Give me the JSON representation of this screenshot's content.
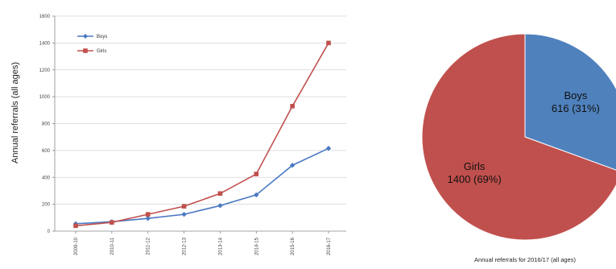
{
  "chart_data": [
    {
      "type": "line",
      "ylabel": "Annual referrals (all ages)",
      "xlabel": "",
      "ylim": [
        0,
        1600
      ],
      "yticks": [
        0,
        200,
        400,
        600,
        800,
        1000,
        1200,
        1400,
        1600
      ],
      "grid": true,
      "legend_position": "top-left",
      "categories": [
        "2009-10",
        "2010-11",
        "2011-12",
        "2012-13",
        "2013-14",
        "2014-15",
        "2015-16",
        "2016-17"
      ],
      "series": [
        {
          "name": "Boys",
          "color": "#4a78c2",
          "marker": "diamond",
          "values": [
            55,
            70,
            95,
            125,
            190,
            270,
            490,
            616
          ]
        },
        {
          "name": "Girls",
          "color": "#c0504d",
          "marker": "square",
          "values": [
            40,
            65,
            125,
            185,
            280,
            425,
            930,
            1400
          ]
        }
      ]
    },
    {
      "type": "pie",
      "caption": "Annual referrals for 2016/17 (all ages)",
      "slices": [
        {
          "name": "Boys",
          "value": 616,
          "percent": 31,
          "label": "616 (31%)",
          "color": "#4f81bd"
        },
        {
          "name": "Girls",
          "value": 1400,
          "percent": 69,
          "label": "1400 (69%)",
          "color": "#c0504d"
        }
      ]
    }
  ]
}
